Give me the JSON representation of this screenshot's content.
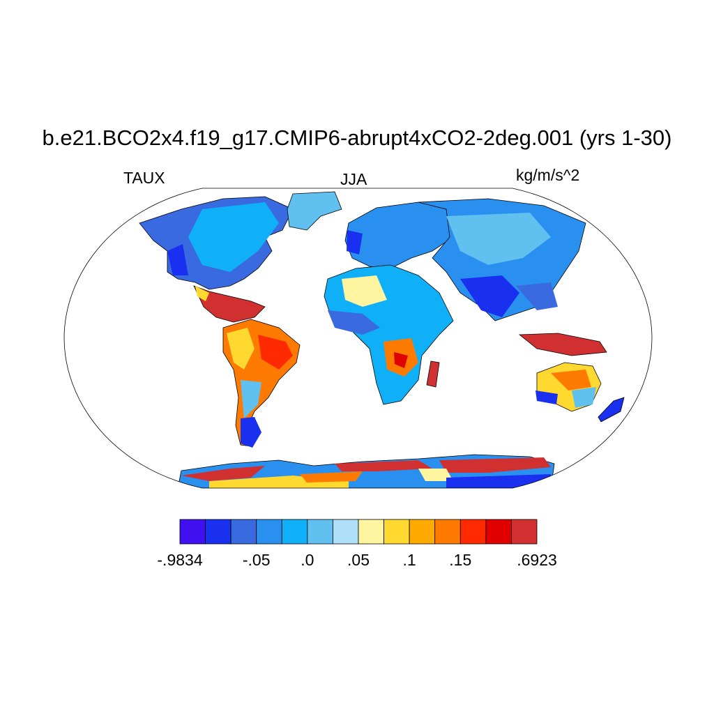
{
  "title": "b.e21.BCO2x4.f19_g17.CMIP6-abrupt4xCO2-2deg.001 (yrs 1-30)",
  "left_label": "TAUX",
  "center_label": "JJA",
  "right_label": "kg/m/s^2",
  "colorbar": {
    "colors": [
      "#4010f0",
      "#1a30f0",
      "#3a6ae0",
      "#2a90f0",
      "#10b0f8",
      "#60c0f0",
      "#b0e0f8",
      "#fff5a0",
      "#ffd830",
      "#ffaa00",
      "#ff7a00",
      "#ff2a00",
      "#e00000",
      "#d03030"
    ],
    "labels": [
      {
        "text": "-.9834",
        "edge": 0
      },
      {
        "text": "-.05",
        "edge": 3
      },
      {
        "text": ".0",
        "edge": 5
      },
      {
        "text": ".05",
        "edge": 7
      },
      {
        "text": ".1",
        "edge": 9
      },
      {
        "text": ".15",
        "edge": 11
      },
      {
        "text": ".6923",
        "edge": 14
      }
    ]
  }
}
